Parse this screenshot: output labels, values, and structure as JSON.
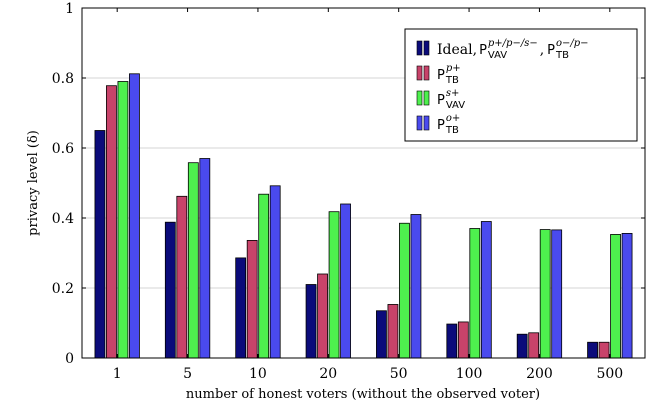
{
  "chart_data": {
    "type": "bar",
    "xlabel": "number of honest voters (without the observed voter)",
    "ylabel": "privacy level (δ)",
    "categories": [
      "1",
      "5",
      "10",
      "20",
      "50",
      "100",
      "200",
      "500"
    ],
    "ylim": [
      0,
      1
    ],
    "yticks": [
      "0",
      "0.2",
      "0.4",
      "0.6",
      "0.8",
      "1"
    ],
    "grid": "horizontal",
    "legend_position": "top-right",
    "series": [
      {
        "name": "Ideal, P_VAV^{p+/p-/s-}, P_TB^{o-/p-}",
        "legend": {
          "base": "Ideal, ",
          "items": [
            {
              "main": "P",
              "sub": "VAV",
              "sup": "p+/p−/s−"
            },
            {
              "sep": ", "
            },
            {
              "main": "P",
              "sub": "TB",
              "sup": "o−/p−"
            }
          ]
        },
        "color": "#0b0b7a",
        "values": [
          0.65,
          0.388,
          0.286,
          0.21,
          0.135,
          0.097,
          0.068,
          0.045
        ]
      },
      {
        "name": "P_TB^{p+}",
        "legend": {
          "items": [
            {
              "main": "P",
              "sub": "TB",
              "sup": "p+"
            }
          ]
        },
        "color": "#c8436a",
        "values": [
          0.778,
          0.462,
          0.336,
          0.24,
          0.153,
          0.103,
          0.072,
          0.045
        ]
      },
      {
        "name": "P_VAV^{s+}",
        "legend": {
          "items": [
            {
              "main": "P",
              "sub": "VAV",
              "sup": "s+"
            }
          ]
        },
        "color": "#4ef04e",
        "values": [
          0.79,
          0.558,
          0.468,
          0.418,
          0.385,
          0.37,
          0.367,
          0.353
        ]
      },
      {
        "name": "P_TB^{o+}",
        "legend": {
          "items": [
            {
              "main": "P",
              "sub": "TB",
              "sup": "o+"
            }
          ]
        },
        "color": "#4a4aee",
        "values": [
          0.812,
          0.57,
          0.492,
          0.44,
          0.41,
          0.39,
          0.366,
          0.356
        ]
      }
    ]
  }
}
